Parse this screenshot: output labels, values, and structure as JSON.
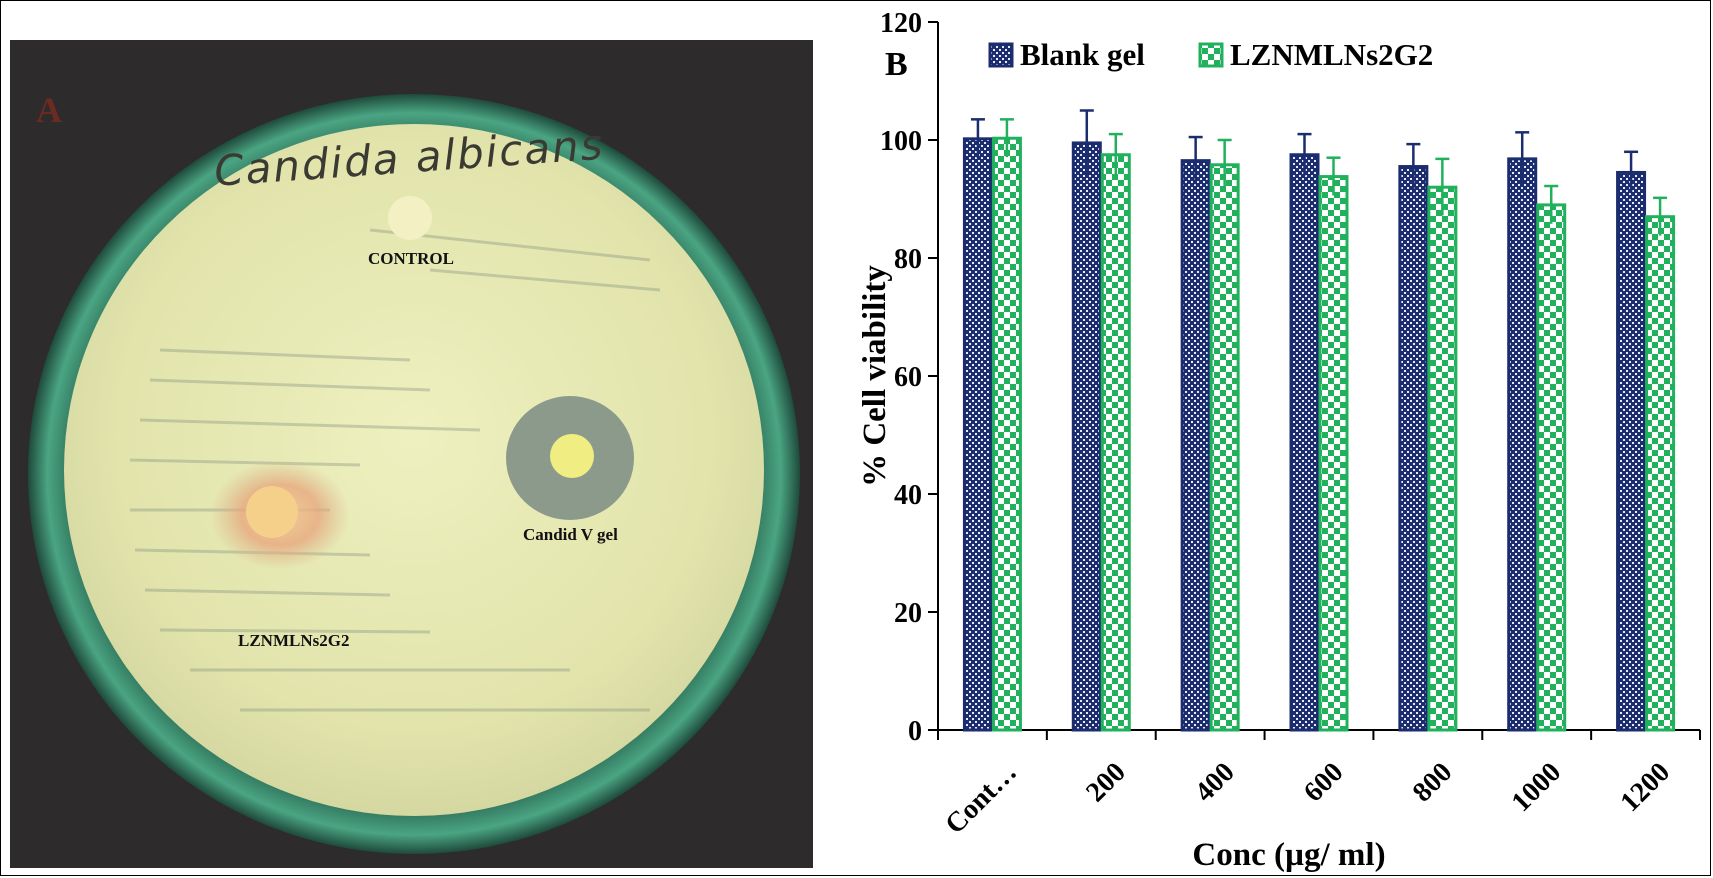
{
  "panel_a": {
    "letter": "A",
    "handwriting": "Candida albicans",
    "labels": {
      "control": "CONTROL",
      "candid": "Candid V gel",
      "lzn": "LZNMLNs2G2"
    },
    "colors": {
      "background": "#2d2b2c",
      "rim": "#3b8f6e",
      "agar": "#e6e6b0",
      "zone": "#8c9a8c"
    }
  },
  "chart_data": {
    "type": "bar",
    "panel_letter": "B",
    "categories": [
      "Cont…",
      "200",
      "400",
      "600",
      "800",
      "1000",
      "1200"
    ],
    "series": [
      {
        "name": "Blank gel",
        "color": "#1b2d6e",
        "values": [
          100.2,
          99.5,
          96.5,
          97.5,
          95.5,
          96.8,
          94.5
        ],
        "errors": [
          3.3,
          5.5,
          4.0,
          3.5,
          3.8,
          4.5,
          3.5
        ]
      },
      {
        "name": "LZNMLNs2G2",
        "color": "#21b15c",
        "values": [
          100.3,
          97.5,
          95.8,
          93.8,
          92.0,
          89.0,
          87.0
        ],
        "errors": [
          3.2,
          3.5,
          4.2,
          3.2,
          4.8,
          3.2,
          3.2
        ]
      }
    ],
    "xlabel": "Conc (µg/ ml)",
    "ylabel": "% Cell viability",
    "ylim": [
      0,
      120
    ],
    "yticks": [
      0,
      20,
      40,
      60,
      80,
      100,
      120
    ],
    "grid": false,
    "legend": "top"
  }
}
